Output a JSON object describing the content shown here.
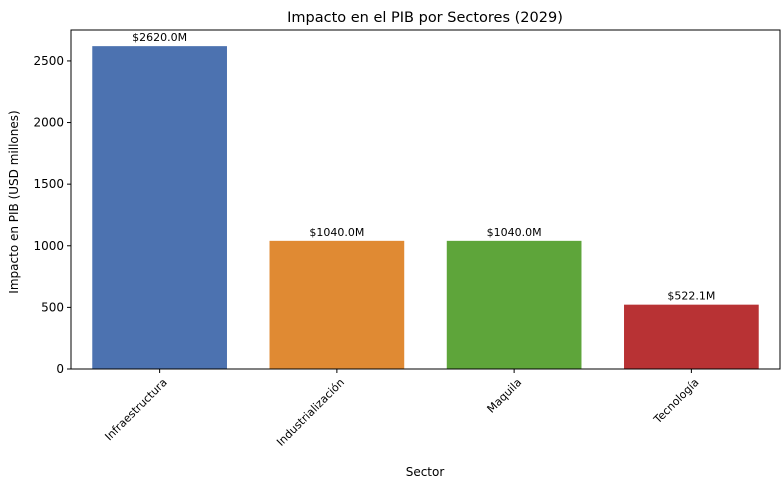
{
  "chart_data": {
    "type": "bar",
    "title": "Impacto en el PIB por Sectores (2029)",
    "xlabel": "Sector",
    "ylabel": "Impacto en PIB (USD millones)",
    "categories": [
      "Infraestructura",
      "Industrialización",
      "Maquila",
      "Tecnología"
    ],
    "values": [
      2620.0,
      1040.0,
      1040.0,
      522.1
    ],
    "data_labels": [
      "$2620.0M",
      "$1040.0M",
      "$1040.0M",
      "$522.1M"
    ],
    "colors": [
      "#4c72b0",
      "#e08a33",
      "#5ea53a",
      "#b83234"
    ],
    "ylim": [
      0,
      2751
    ],
    "yticks": [
      0,
      500,
      1000,
      1500,
      2000,
      2500
    ],
    "grid": false,
    "legend": "none"
  }
}
